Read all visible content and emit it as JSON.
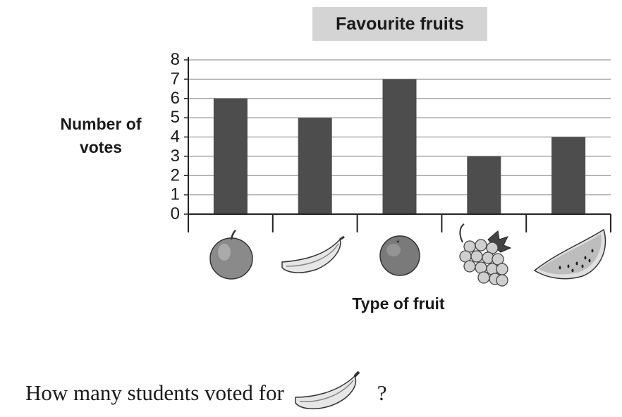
{
  "chart_data": {
    "type": "bar",
    "title": "Favourite fruits",
    "ylabel": "Number of votes",
    "xlabel": "Type of fruit",
    "categories": [
      "apple",
      "banana",
      "orange",
      "grapes",
      "watermelon"
    ],
    "values": [
      6,
      5,
      7,
      3,
      4
    ],
    "ylim": [
      0,
      8
    ],
    "yticks": [
      "0",
      "1",
      "2",
      "3",
      "4",
      "5",
      "6",
      "7",
      "8"
    ],
    "grid": true,
    "bar_color": "#4d4d4d",
    "grid_color": "#9a9a9a"
  },
  "question": {
    "prefix": "How many students voted for",
    "icon": "banana-icon",
    "suffix": "?"
  }
}
